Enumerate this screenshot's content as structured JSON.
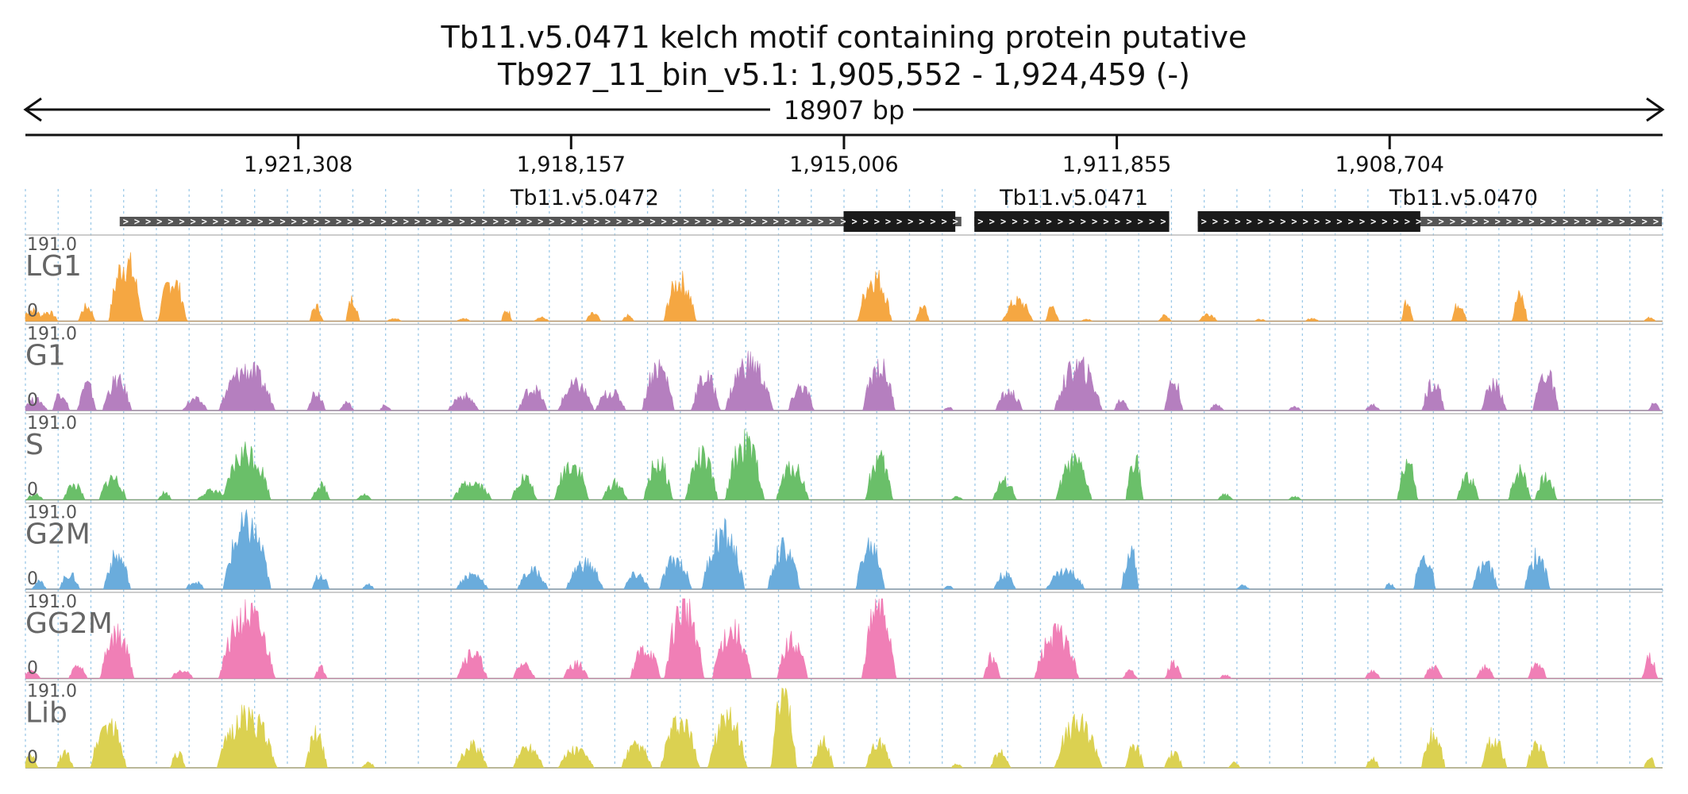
{
  "chart_data": {
    "type": "area",
    "title": "Tb11.v5.0471  kelch motif containing protein  putative",
    "subtitle": "Tb927_11_bin_v5.1: 1,905,552 - 1,924,459 (-)",
    "span_label": "18907 bp",
    "x_range": [
      1924459,
      1905552
    ],
    "x_ticks": [
      {
        "value": 1921308,
        "label": "1,921,308"
      },
      {
        "value": 1918157,
        "label": "1,918,157"
      },
      {
        "value": 1915006,
        "label": "1,915,006"
      },
      {
        "value": 1911855,
        "label": "1,911,855"
      },
      {
        "value": 1908704,
        "label": "1,908,704"
      }
    ],
    "genes": [
      {
        "name": "Tb11.v5.0472",
        "start": 1923370,
        "end": 1913650,
        "cds_start": 1915010,
        "cds_end": 1913720,
        "label_pos": 1918000
      },
      {
        "name": "Tb11.v5.0471",
        "start": 1913500,
        "end": 1911250,
        "cds_start": 1913500,
        "cds_end": 1911250,
        "label_pos": 1912350
      },
      {
        "name": "Tb11.v5.0470",
        "start": 1910920,
        "end": 1905560,
        "cds_start": 1910920,
        "cds_end": 1908350,
        "label_pos": 1907850
      }
    ],
    "y_max_label": "191.0",
    "y_min_label": "0",
    "ylim": [
      0,
      191
    ],
    "series": [
      {
        "name": "LG1",
        "color": "#f5a742",
        "peaks": [
          [
            1924380,
            30,
            110
          ],
          [
            1924200,
            25,
            90
          ],
          [
            1923750,
            40,
            70
          ],
          [
            1923300,
            160,
            170
          ],
          [
            1922760,
            110,
            140
          ],
          [
            1921100,
            40,
            50
          ],
          [
            1920680,
            60,
            50
          ],
          [
            1920200,
            8,
            60
          ],
          [
            1919400,
            8,
            50
          ],
          [
            1918900,
            30,
            35
          ],
          [
            1918500,
            10,
            60
          ],
          [
            1917900,
            20,
            60
          ],
          [
            1917500,
            15,
            40
          ],
          [
            1916900,
            110,
            160
          ],
          [
            1914650,
            120,
            170
          ],
          [
            1914100,
            40,
            50
          ],
          [
            1913000,
            55,
            150
          ],
          [
            1912600,
            40,
            50
          ],
          [
            1912200,
            5,
            40
          ],
          [
            1911300,
            15,
            50
          ],
          [
            1910800,
            20,
            80
          ],
          [
            1910200,
            5,
            40
          ],
          [
            1909600,
            8,
            50
          ],
          [
            1908500,
            60,
            40
          ],
          [
            1907900,
            50,
            60
          ],
          [
            1907200,
            70,
            60
          ],
          [
            1905700,
            10,
            40
          ]
        ]
      },
      {
        "name": "G1",
        "color": "#b57fbf",
        "peaks": [
          [
            1924350,
            30,
            120
          ],
          [
            1924050,
            50,
            70
          ],
          [
            1923750,
            70,
            80
          ],
          [
            1923400,
            80,
            140
          ],
          [
            1922500,
            30,
            120
          ],
          [
            1921900,
            110,
            300
          ],
          [
            1921100,
            50,
            80
          ],
          [
            1920750,
            20,
            60
          ],
          [
            1920300,
            15,
            40
          ],
          [
            1919400,
            40,
            150
          ],
          [
            1918600,
            60,
            140
          ],
          [
            1918100,
            70,
            180
          ],
          [
            1917700,
            50,
            150
          ],
          [
            1917150,
            120,
            160
          ],
          [
            1916600,
            90,
            140
          ],
          [
            1916100,
            130,
            250
          ],
          [
            1915500,
            65,
            120
          ],
          [
            1914600,
            120,
            160
          ],
          [
            1913800,
            10,
            30
          ],
          [
            1913100,
            50,
            130
          ],
          [
            1912300,
            120,
            250
          ],
          [
            1911800,
            30,
            60
          ],
          [
            1911200,
            80,
            80
          ],
          [
            1910700,
            15,
            60
          ],
          [
            1909800,
            10,
            50
          ],
          [
            1908900,
            15,
            60
          ],
          [
            1908200,
            80,
            100
          ],
          [
            1907500,
            70,
            120
          ],
          [
            1906900,
            100,
            120
          ],
          [
            1905650,
            20,
            40
          ]
        ]
      },
      {
        "name": "S",
        "color": "#6abf69",
        "peaks": [
          [
            1924350,
            15,
            70
          ],
          [
            1923900,
            40,
            100
          ],
          [
            1923450,
            60,
            130
          ],
          [
            1922850,
            20,
            50
          ],
          [
            1922300,
            25,
            150
          ],
          [
            1921900,
            130,
            250
          ],
          [
            1921050,
            40,
            80
          ],
          [
            1920550,
            15,
            60
          ],
          [
            1919300,
            50,
            200
          ],
          [
            1918700,
            60,
            120
          ],
          [
            1918150,
            100,
            170
          ],
          [
            1917650,
            45,
            120
          ],
          [
            1917150,
            100,
            140
          ],
          [
            1916650,
            115,
            160
          ],
          [
            1916150,
            150,
            200
          ],
          [
            1915600,
            90,
            160
          ],
          [
            1914600,
            110,
            130
          ],
          [
            1913700,
            10,
            40
          ],
          [
            1913150,
            50,
            110
          ],
          [
            1912350,
            100,
            180
          ],
          [
            1911650,
            120,
            70
          ],
          [
            1910600,
            15,
            60
          ],
          [
            1909800,
            8,
            50
          ],
          [
            1908500,
            100,
            90
          ],
          [
            1907800,
            60,
            100
          ],
          [
            1907200,
            80,
            100
          ],
          [
            1906900,
            60,
            100
          ]
        ]
      },
      {
        "name": "G2M",
        "color": "#6aacdc",
        "peaks": [
          [
            1924300,
            20,
            60
          ],
          [
            1923950,
            40,
            90
          ],
          [
            1923400,
            90,
            130
          ],
          [
            1922500,
            20,
            80
          ],
          [
            1921900,
            170,
            250
          ],
          [
            1921050,
            40,
            70
          ],
          [
            1920500,
            15,
            40
          ],
          [
            1919300,
            40,
            160
          ],
          [
            1918600,
            50,
            150
          ],
          [
            1918000,
            70,
            190
          ],
          [
            1917400,
            40,
            120
          ],
          [
            1916950,
            80,
            160
          ],
          [
            1916400,
            150,
            220
          ],
          [
            1915700,
            110,
            160
          ],
          [
            1914700,
            120,
            140
          ],
          [
            1913800,
            10,
            30
          ],
          [
            1913150,
            40,
            100
          ],
          [
            1912450,
            50,
            200
          ],
          [
            1911700,
            110,
            70
          ],
          [
            1910400,
            10,
            50
          ],
          [
            1908700,
            15,
            40
          ],
          [
            1908300,
            85,
            100
          ],
          [
            1907600,
            70,
            120
          ],
          [
            1907000,
            90,
            120
          ]
        ]
      },
      {
        "name": "GG2M",
        "color": "#f07fb6",
        "peaks": [
          [
            1924400,
            20,
            90
          ],
          [
            1923850,
            35,
            80
          ],
          [
            1923400,
            120,
            170
          ],
          [
            1922650,
            25,
            100
          ],
          [
            1921900,
            170,
            300
          ],
          [
            1921050,
            30,
            50
          ],
          [
            1919300,
            70,
            150
          ],
          [
            1918700,
            40,
            100
          ],
          [
            1918100,
            40,
            120
          ],
          [
            1917300,
            80,
            150
          ],
          [
            1916850,
            191,
            200
          ],
          [
            1916300,
            130,
            200
          ],
          [
            1915600,
            100,
            150
          ],
          [
            1914600,
            191,
            170
          ],
          [
            1913300,
            60,
            70
          ],
          [
            1912550,
            120,
            230
          ],
          [
            1911700,
            20,
            60
          ],
          [
            1911200,
            40,
            70
          ],
          [
            1910600,
            10,
            40
          ],
          [
            1908900,
            20,
            60
          ],
          [
            1908200,
            30,
            80
          ],
          [
            1907600,
            30,
            80
          ],
          [
            1907000,
            40,
            80
          ],
          [
            1905700,
            55,
            60
          ]
        ]
      },
      {
        "name": "Lib",
        "color": "#dbd151",
        "peaks": [
          [
            1924400,
            30,
            60
          ],
          [
            1924000,
            40,
            70
          ],
          [
            1923500,
            120,
            180
          ],
          [
            1922700,
            40,
            60
          ],
          [
            1921900,
            140,
            320
          ],
          [
            1921100,
            90,
            100
          ],
          [
            1920500,
            15,
            50
          ],
          [
            1919300,
            60,
            150
          ],
          [
            1918650,
            60,
            150
          ],
          [
            1918100,
            50,
            180
          ],
          [
            1917400,
            60,
            150
          ],
          [
            1916900,
            120,
            200
          ],
          [
            1916350,
            130,
            200
          ],
          [
            1915700,
            191,
            120
          ],
          [
            1915250,
            70,
            100
          ],
          [
            1914600,
            65,
            130
          ],
          [
            1913700,
            10,
            40
          ],
          [
            1913200,
            40,
            90
          ],
          [
            1912300,
            120,
            250
          ],
          [
            1911650,
            60,
            80
          ],
          [
            1911200,
            40,
            80
          ],
          [
            1910500,
            15,
            40
          ],
          [
            1908900,
            25,
            50
          ],
          [
            1908200,
            90,
            110
          ],
          [
            1907500,
            75,
            120
          ],
          [
            1907000,
            60,
            100
          ],
          [
            1905700,
            30,
            40
          ]
        ]
      }
    ]
  }
}
